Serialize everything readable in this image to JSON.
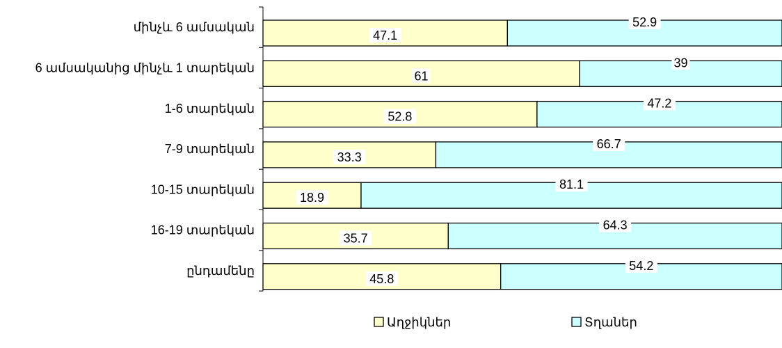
{
  "chart_data": {
    "type": "bar",
    "orientation": "horizontal",
    "stacked": true,
    "categories": [
      "մինչև 6 ամսական",
      "6 ամսականից մինչև 1  տարեկան",
      "1-6 տարեկան",
      "7-9 տարեկան",
      "10-15 տարեկան",
      "16-19 տարեկան",
      "ընդամենը"
    ],
    "series": [
      {
        "name": "Աղջիկներ",
        "values": [
          47.1,
          61,
          52.8,
          33.3,
          18.9,
          35.7,
          45.8
        ],
        "labels": [
          "47.1",
          "61",
          "52.8",
          "33.3",
          "18.9",
          "35.7",
          "45.8"
        ],
        "color": "#ffffcc"
      },
      {
        "name": "Տղաներ",
        "values": [
          52.9,
          39,
          47.2,
          66.7,
          81.1,
          64.3,
          54.2
        ],
        "labels": [
          "52.9",
          "39",
          "47.2",
          "66.7",
          "81.1",
          "64.3",
          "54.2"
        ],
        "color": "#ccffff"
      }
    ],
    "xlim": [
      0,
      100
    ],
    "grid": false,
    "legend_position": "bottom"
  }
}
